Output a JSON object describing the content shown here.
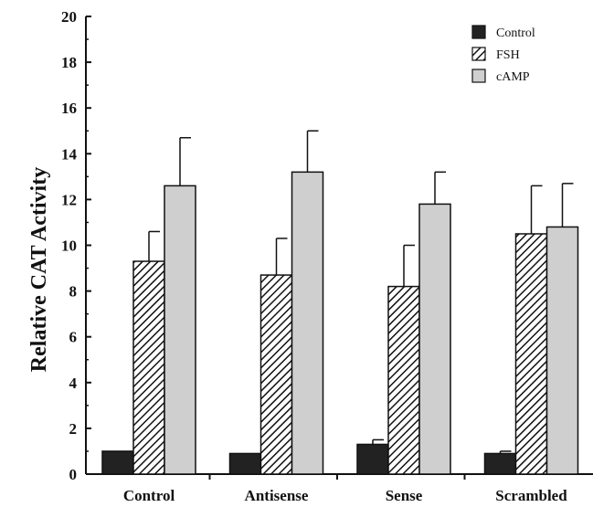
{
  "chart_data": {
    "type": "bar",
    "title": "",
    "xlabel": "",
    "ylabel": "Relative CAT Activity",
    "ylim": [
      0,
      20
    ],
    "yticks": [
      "0",
      "2",
      "4",
      "6",
      "8",
      "10",
      "12",
      "14",
      "16",
      "18",
      "20"
    ],
    "categories": [
      "Control",
      "Antisense",
      "Sense",
      "Scrambled"
    ],
    "series": [
      {
        "name": "Control",
        "values": [
          1.0,
          0.9,
          1.3,
          0.9
        ],
        "errors": [
          0.0,
          0.0,
          0.2,
          0.1
        ],
        "fill": "#222222"
      },
      {
        "name": "FSH",
        "values": [
          9.3,
          8.7,
          8.2,
          10.5
        ],
        "errors": [
          1.3,
          1.6,
          1.8,
          2.1
        ],
        "fill": "hatch"
      },
      {
        "name": "cAMP",
        "values": [
          12.6,
          13.2,
          11.8,
          10.8
        ],
        "errors": [
          2.1,
          1.8,
          1.4,
          1.9
        ],
        "fill": "#cfcfcf"
      }
    ],
    "legend_position": "top-right",
    "grid": false
  }
}
